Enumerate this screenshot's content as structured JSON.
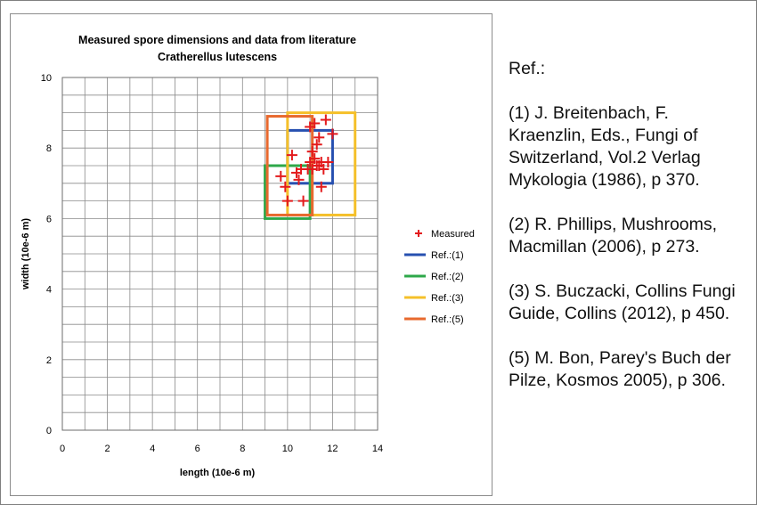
{
  "refs_panel": {
    "title": "Ref.:",
    "items": [
      "(1) J. Breitenbach, F. Kraenzlin, Eds., Fungi of Switzerland, Vol.2 Verlag Mykologia (1986), p 370.",
      "(2) R. Phillips, Mushrooms, Macmillan (2006), p 273.",
      "(3) S. Buczacki, Collins Fungi Guide, Collins (2012), p 450.",
      "(5) M. Bon, Parey's Buch der Pilze, Kosmos 2005), p 306."
    ]
  },
  "chart_data": {
    "type": "scatter",
    "title": "Measured spore dimensions and data from literature",
    "subtitle": "Cratherellus lutescens",
    "xlabel": "length (10e-6 m)",
    "ylabel": "width (10e-6 m)",
    "xlim": [
      0,
      14
    ],
    "ylim": [
      0,
      10
    ],
    "xticks": [
      0,
      2,
      4,
      6,
      8,
      10,
      12,
      14
    ],
    "yticks": [
      0,
      2,
      4,
      6,
      8,
      10
    ],
    "x_minor_step": 1,
    "y_minor_step": 0.5,
    "grid": true,
    "legend_position": "right",
    "measured": {
      "name": "Measured",
      "color": "#e31a1c",
      "marker": "plus",
      "points": [
        [
          9.7,
          7.2
        ],
        [
          9.9,
          6.9
        ],
        [
          10.0,
          6.5
        ],
        [
          10.2,
          7.8
        ],
        [
          10.4,
          7.3
        ],
        [
          10.5,
          7.1
        ],
        [
          10.6,
          7.4
        ],
        [
          10.7,
          6.5
        ],
        [
          10.9,
          7.4
        ],
        [
          11.0,
          8.6
        ],
        [
          11.0,
          7.6
        ],
        [
          11.1,
          7.4
        ],
        [
          11.1,
          7.9
        ],
        [
          11.2,
          8.7
        ],
        [
          11.2,
          7.7
        ],
        [
          11.3,
          8.1
        ],
        [
          11.3,
          7.5
        ],
        [
          11.4,
          7.5
        ],
        [
          11.4,
          8.3
        ],
        [
          11.5,
          6.9
        ],
        [
          11.5,
          7.6
        ],
        [
          11.6,
          7.4
        ],
        [
          11.7,
          8.8
        ],
        [
          11.8,
          7.6
        ],
        [
          12.0,
          8.4
        ]
      ]
    },
    "references": [
      {
        "name": "Ref.:(1)",
        "color": "#2750b0",
        "x": [
          10,
          12
        ],
        "y": [
          7,
          8.5
        ]
      },
      {
        "name": "Ref.:(2)",
        "color": "#2ea84a",
        "x": [
          9,
          11
        ],
        "y": [
          6,
          7.5
        ]
      },
      {
        "name": "Ref.:(3)",
        "color": "#f5c02a",
        "x": [
          10,
          13
        ],
        "y": [
          6.1,
          9
        ]
      },
      {
        "name": "Ref.:(5)",
        "color": "#e8692e",
        "x": [
          9.1,
          11.1
        ],
        "y": [
          6.1,
          8.9
        ]
      }
    ]
  }
}
